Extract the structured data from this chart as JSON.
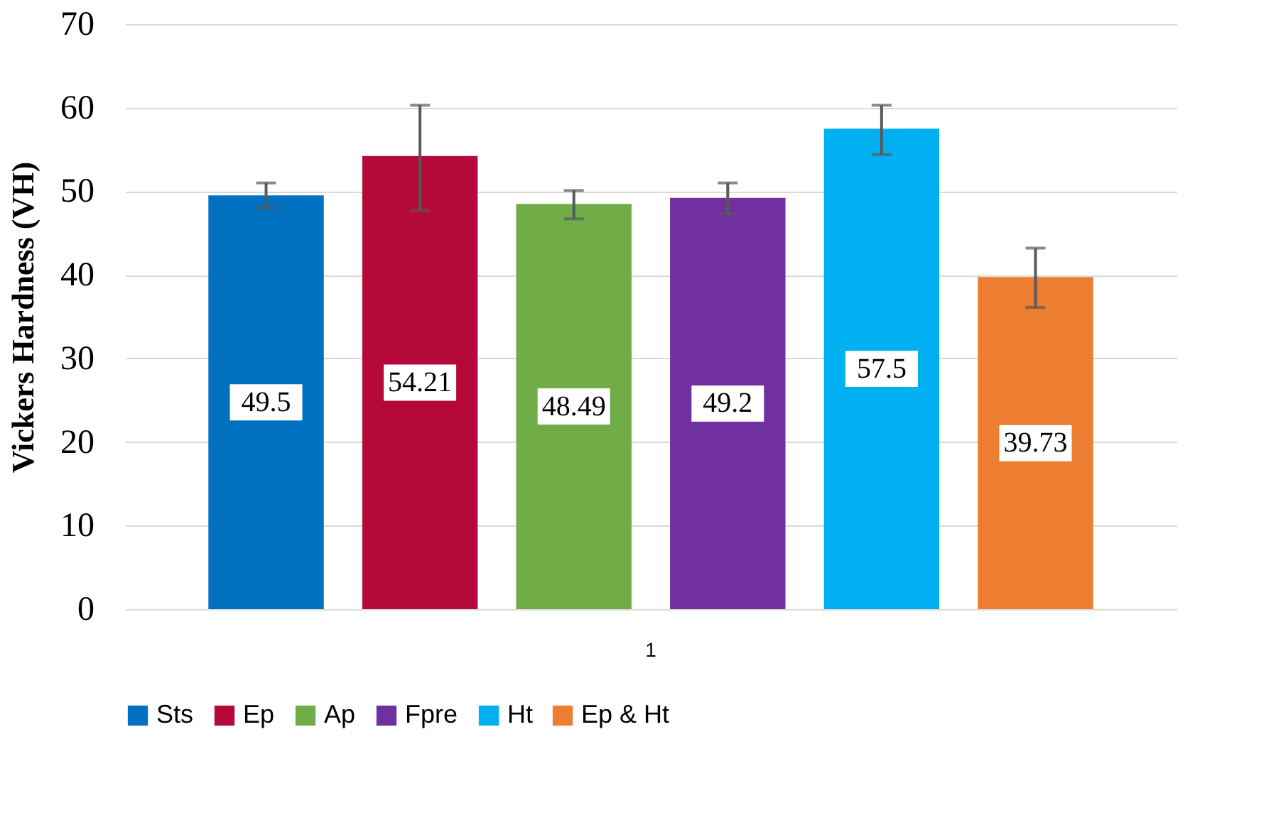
{
  "chart_data": {
    "type": "bar",
    "ylabel": "Vickers Hardness (VH)",
    "categories": [
      "1"
    ],
    "series": [
      {
        "name": "Sts",
        "color": "#0070c0",
        "values": [
          49.5
        ],
        "errors": [
          [
            48.0,
            51.0
          ]
        ]
      },
      {
        "name": "Ep",
        "color": "#b5093a",
        "values": [
          54.21
        ],
        "errors": [
          [
            47.7,
            60.3
          ]
        ]
      },
      {
        "name": "Ap",
        "color": "#70ad47",
        "values": [
          48.49
        ],
        "errors": [
          [
            46.7,
            50.1
          ]
        ]
      },
      {
        "name": "Fpre",
        "color": "#7030a0",
        "values": [
          49.2
        ],
        "errors": [
          [
            47.3,
            51.0
          ]
        ]
      },
      {
        "name": "Ht",
        "color": "#00b0f0",
        "values": [
          57.5
        ],
        "errors": [
          [
            54.4,
            60.3
          ]
        ]
      },
      {
        "name": "Ep & Ht",
        "color": "#ed7d31",
        "values": [
          39.73
        ],
        "errors": [
          [
            36.1,
            43.2
          ]
        ]
      }
    ],
    "ylim": [
      0,
      70
    ],
    "yticks": [
      0,
      10,
      20,
      30,
      40,
      50,
      60,
      70
    ],
    "grid": "y",
    "legend": "bottom",
    "data_labels": true
  }
}
